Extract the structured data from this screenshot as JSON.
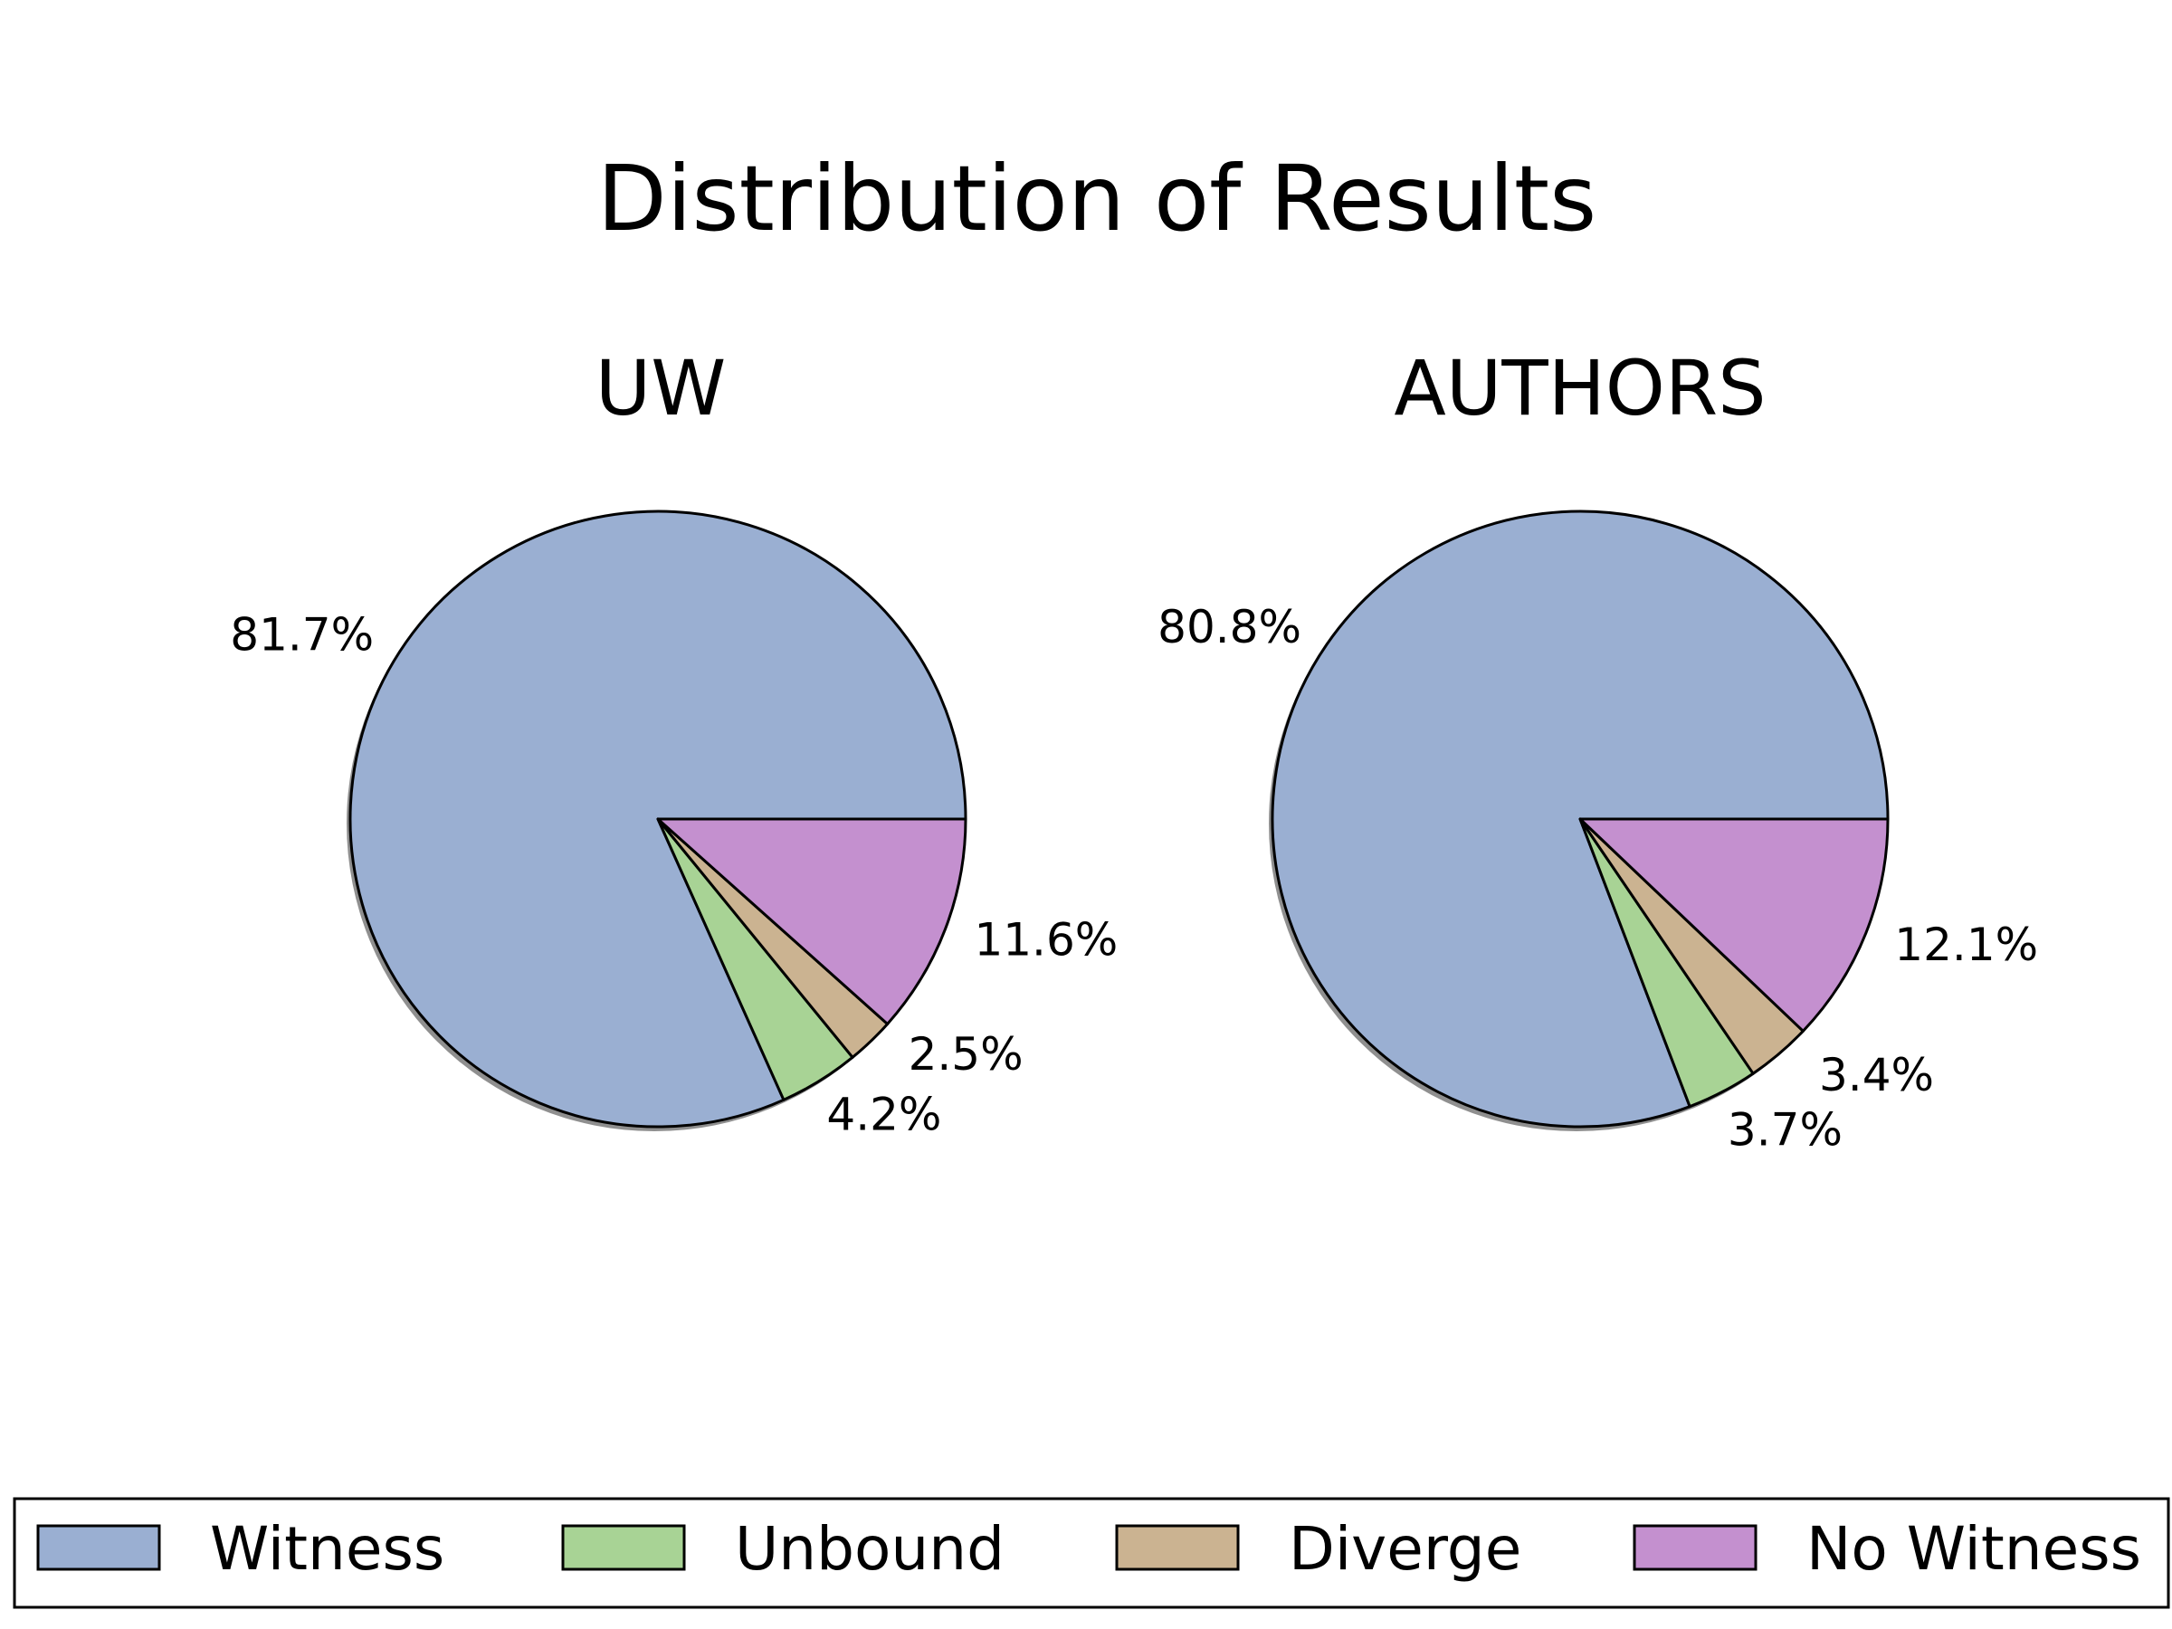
{
  "chart_data": {
    "type": "pie",
    "title": "Distribution of Results",
    "legend": {
      "placement": "bottom",
      "entries": [
        {
          "label": "Witness",
          "color": "#9aafd2"
        },
        {
          "label": "Unbound",
          "color": "#a8d395"
        },
        {
          "label": "Diverge",
          "color": "#cbb391"
        },
        {
          "label": "No Witness",
          "color": "#c490cf"
        }
      ]
    },
    "charts": [
      {
        "title": "UW",
        "slices": [
          {
            "label": "Witness",
            "value": 81.7,
            "display": "81.7%",
            "color": "#9aafd2"
          },
          {
            "label": "Unbound",
            "value": 4.2,
            "display": "4.2%",
            "color": "#a8d395"
          },
          {
            "label": "Diverge",
            "value": 2.5,
            "display": "2.5%",
            "color": "#cbb391"
          },
          {
            "label": "No Witness",
            "value": 11.6,
            "display": "11.6%",
            "color": "#c490cf"
          }
        ]
      },
      {
        "title": "AUTHORS",
        "slices": [
          {
            "label": "Witness",
            "value": 80.8,
            "display": "80.8%",
            "color": "#9aafd2"
          },
          {
            "label": "Unbound",
            "value": 3.7,
            "display": "3.7%",
            "color": "#a8d395"
          },
          {
            "label": "Diverge",
            "value": 3.4,
            "display": "3.4%",
            "color": "#cbb391"
          },
          {
            "label": "No Witness",
            "value": 12.1,
            "display": "12.1%",
            "color": "#c490cf"
          }
        ]
      }
    ]
  }
}
